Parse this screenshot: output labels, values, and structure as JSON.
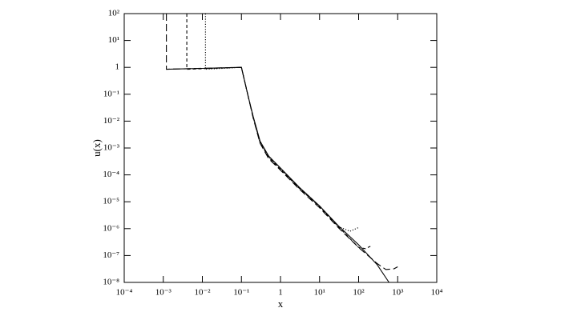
{
  "chart_data": {
    "type": "line",
    "xlabel": "x",
    "ylabel": "u(x)",
    "xscale": "log",
    "yscale": "log",
    "xlim": [
      0.0001,
      10000
    ],
    "ylim": [
      1e-08,
      100
    ],
    "xticks": [
      {
        "value": 0.0001,
        "label": "10⁻⁴"
      },
      {
        "value": 0.001,
        "label": "10⁻³"
      },
      {
        "value": 0.01,
        "label": "10⁻²"
      },
      {
        "value": 0.1,
        "label": "10⁻¹"
      },
      1,
      {
        "value": 10,
        "label": "10¹"
      },
      {
        "value": 100,
        "label": "10²"
      },
      {
        "value": 1000,
        "label": "10³"
      },
      {
        "value": 10000,
        "label": "10⁴"
      }
    ],
    "yticks": [
      {
        "value": 1e-08,
        "label": "10⁻⁸"
      },
      {
        "value": 1e-07,
        "label": "10⁻⁷"
      },
      {
        "value": 1e-06,
        "label": "10⁻⁶"
      },
      {
        "value": 1e-05,
        "label": "10⁻⁵"
      },
      {
        "value": 0.0001,
        "label": "10⁻⁴"
      },
      {
        "value": 0.001,
        "label": "10⁻³"
      },
      {
        "value": 0.01,
        "label": "10⁻²"
      },
      {
        "value": 0.1,
        "label": "10⁻¹"
      },
      1,
      {
        "value": 10,
        "label": "10¹"
      },
      {
        "value": 100,
        "label": "10²"
      }
    ],
    "series": [
      {
        "color": "#000000",
        "style": "solid",
        "x": [
          0.0012,
          0.1,
          0.15,
          0.2,
          0.3,
          0.5,
          1,
          3,
          10,
          30,
          100,
          300,
          600
        ],
        "values": [
          0.85,
          1.0,
          0.08,
          0.015,
          0.0018,
          0.0005,
          0.00018,
          3.5e-05,
          7e-06,
          1.3e-06,
          2.5e-07,
          4.5e-08,
          1e-08
        ]
      },
      {
        "color": "#000000",
        "style": "long-dash",
        "x": [
          0.0012,
          0.0012,
          0.1,
          0.15,
          0.2,
          0.3,
          0.5,
          1,
          3,
          10,
          30,
          100,
          300,
          500,
          800,
          1000
        ],
        "values": [
          100,
          0.85,
          1.0,
          0.08,
          0.013,
          0.0015,
          0.0004,
          0.00015,
          3e-05,
          6e-06,
          1.1e-06,
          2e-07,
          5e-08,
          3e-08,
          3.2e-08,
          3.8e-08
        ]
      },
      {
        "color": "#000000",
        "style": "dash",
        "x": [
          0.004,
          0.004,
          0.1,
          0.15,
          0.2,
          0.3,
          0.5,
          1,
          3,
          10,
          30,
          100,
          150,
          200
        ],
        "values": [
          100,
          0.85,
          1.0,
          0.08,
          0.014,
          0.0016,
          0.00045,
          0.00016,
          3.2e-05,
          6.5e-06,
          1.2e-06,
          2e-07,
          1.8e-07,
          2.2e-07
        ]
      },
      {
        "color": "#000000",
        "style": "dot",
        "x": [
          0.012,
          0.012,
          0.1,
          0.15,
          0.2,
          0.3,
          0.5,
          1,
          3,
          10,
          30,
          60,
          100
        ],
        "values": [
          100,
          0.85,
          1.0,
          0.08,
          0.014,
          0.0017,
          0.00046,
          0.00017,
          3.3e-05,
          6.8e-06,
          1.2e-06,
          8e-07,
          1.1e-06
        ]
      }
    ]
  }
}
